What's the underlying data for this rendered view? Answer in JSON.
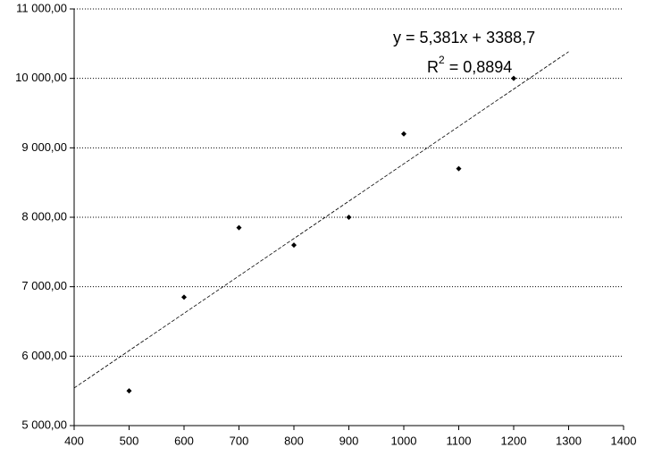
{
  "chart_data": {
    "type": "scatter",
    "x": [
      500,
      600,
      700,
      800,
      900,
      1000,
      1100,
      1200
    ],
    "values": [
      5500,
      6850,
      7850,
      7600,
      8000,
      9200,
      8700,
      10000
    ],
    "color": "#000000",
    "xlim": [
      400,
      1400
    ],
    "xticks": [
      400,
      500,
      600,
      700,
      800,
      900,
      1000,
      1100,
      1200,
      1300,
      1400
    ],
    "ylim": [
      5000,
      11000
    ],
    "yticks": [
      {
        "value": 5000,
        "label": "5 000,00"
      },
      {
        "value": 6000,
        "label": "6 000,00"
      },
      {
        "value": 7000,
        "label": "7 000,00"
      },
      {
        "value": 8000,
        "label": "8 000,00"
      },
      {
        "value": 9000,
        "label": "9 000,00"
      },
      {
        "value": 10000,
        "label": "10 000,00"
      },
      {
        "value": 11000,
        "label": "11 000,00"
      }
    ],
    "grid": true,
    "trendline": {
      "x": [
        400,
        1300
      ],
      "values": [
        5541.1,
        10384
      ],
      "equation": "y = 5,381x + 3388,7",
      "r2_base": "R",
      "r2_sup": "2",
      "r2_rest": " = 0,8894"
    }
  }
}
